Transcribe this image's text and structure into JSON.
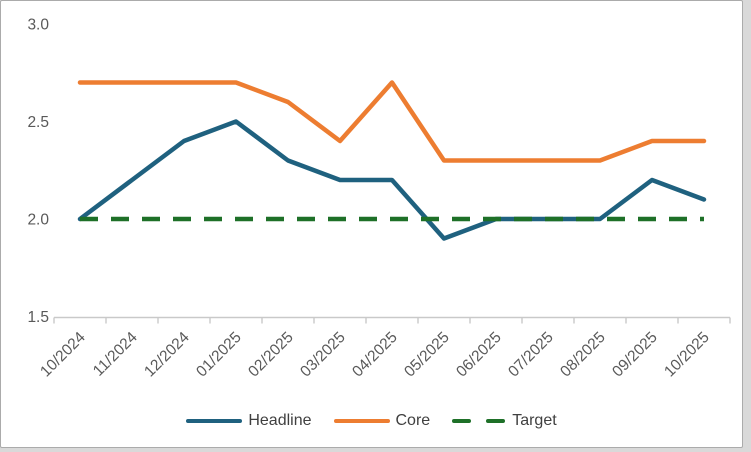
{
  "chart_data": {
    "type": "line",
    "title": "",
    "categories": [
      "10/2024",
      "11/2024",
      "12/2024",
      "01/2025",
      "02/2025",
      "03/2025",
      "04/2025",
      "05/2025",
      "06/2025",
      "07/2025",
      "08/2025",
      "09/2025",
      "10/2025"
    ],
    "series": [
      {
        "name": "Headline",
        "color": "#1F617F",
        "style": "solid",
        "values": [
          2.0,
          2.2,
          2.4,
          2.5,
          2.3,
          2.2,
          2.2,
          1.9,
          2.0,
          2.0,
          2.0,
          2.2,
          2.1
        ]
      },
      {
        "name": "Core",
        "color": "#ED7D31",
        "style": "solid",
        "values": [
          2.7,
          2.7,
          2.7,
          2.7,
          2.6,
          2.4,
          2.7,
          2.3,
          2.3,
          2.3,
          2.3,
          2.4,
          2.4
        ]
      },
      {
        "name": "Target",
        "color": "#1E7028",
        "style": "dashed",
        "values": [
          2.0,
          2.0,
          2.0,
          2.0,
          2.0,
          2.0,
          2.0,
          2.0,
          2.0,
          2.0,
          2.0,
          2.0,
          2.0
        ]
      }
    ],
    "xlabel": "",
    "ylabel": "",
    "ylim": [
      1.5,
      3.0
    ],
    "yticks": [
      "3.0",
      "2.5",
      "2.0",
      "1.5"
    ],
    "ytick_values": [
      3.0,
      2.5,
      2.0,
      1.5
    ],
    "grid": false,
    "legend_position": "bottom",
    "x_labels_rotation_deg": -45
  },
  "style_colors": {
    "axis_line": "#C9C9C9",
    "tick_label": "#595959",
    "legend_label": "#404040",
    "frame_border": "#ABABAB",
    "plot_background": "#FFFFFF",
    "canvas_background": "#D9D9D9"
  }
}
